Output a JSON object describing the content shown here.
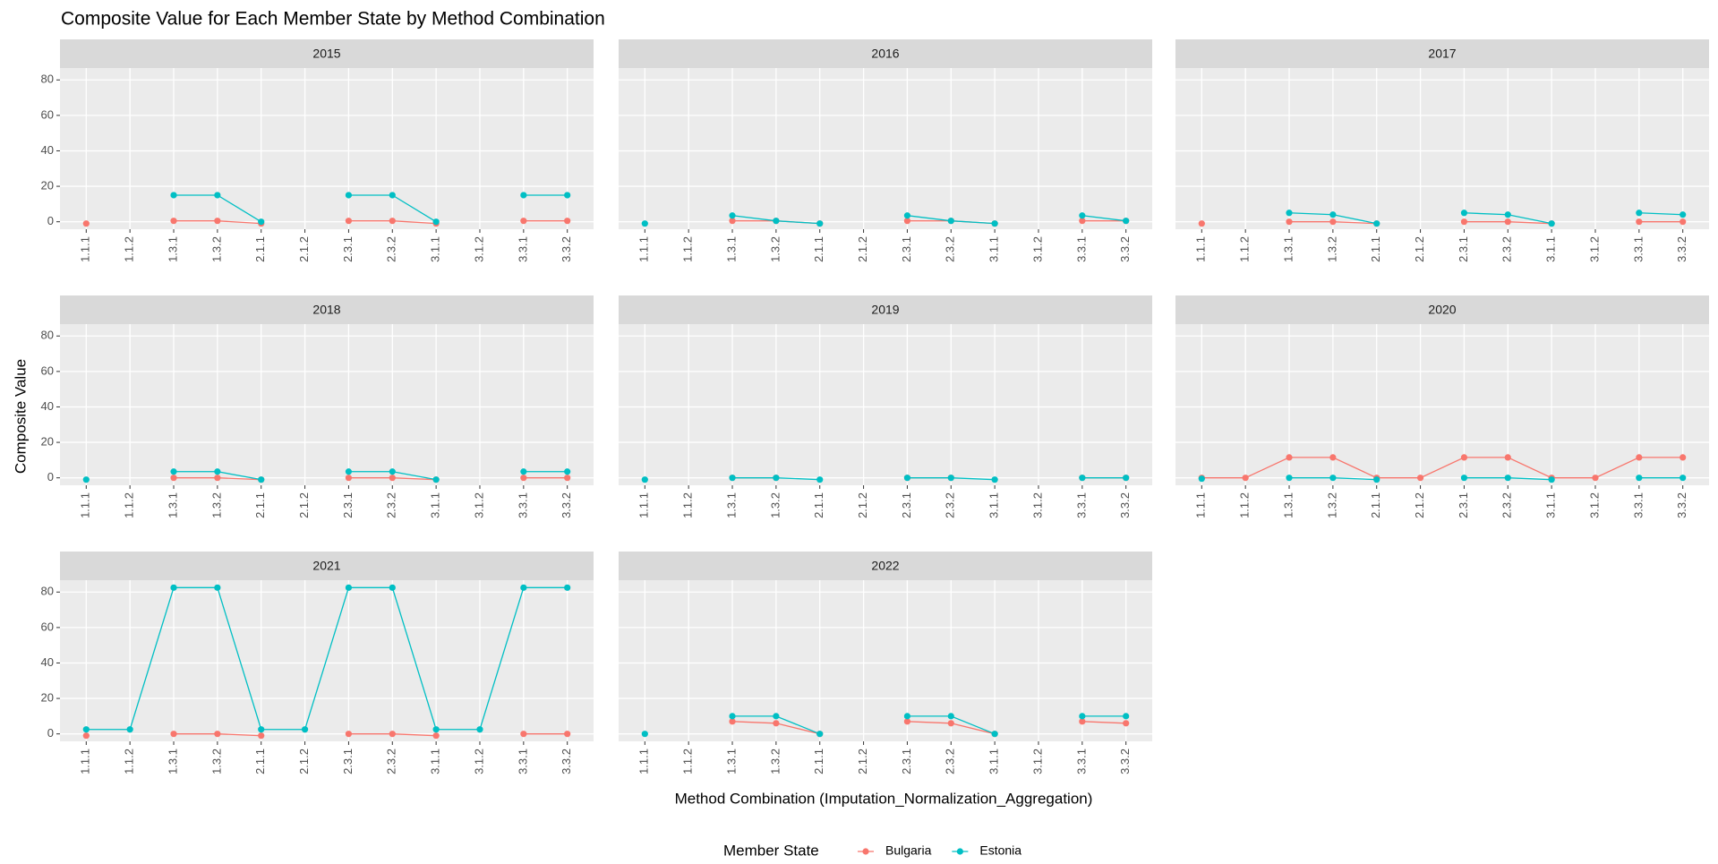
{
  "chart_data": {
    "type": "line",
    "title": "Composite Value for Each Member State by Method Combination",
    "x_label": "Method Combination (Imputation_Normalization_Aggregation)",
    "y_label": "Composite Value",
    "legend_title": "Member State",
    "categories": [
      "1.1.1",
      "1.1.2",
      "1.3.1",
      "1.3.2",
      "2.1.1",
      "2.1.2",
      "2.3.1",
      "2.3.2",
      "3.1.1",
      "3.1.2",
      "3.3.1",
      "3.3.2"
    ],
    "ylim": [
      -4.2,
      86.7
    ],
    "yticks": [
      0,
      20,
      40,
      60,
      80
    ],
    "grid": true,
    "series": [
      {
        "name": "Bulgaria",
        "color": "#F8766D"
      },
      {
        "name": "Estonia",
        "color": "#00BFC4"
      }
    ],
    "facets": [
      {
        "title": "2015",
        "values": [
          [
            -1,
            null,
            0.5,
            0.5,
            -1,
            null,
            0.5,
            0.5,
            -1,
            null,
            0.5,
            0.5
          ],
          [
            null,
            null,
            15,
            15,
            0,
            null,
            15,
            15,
            0,
            null,
            15,
            15
          ]
        ]
      },
      {
        "title": "2016",
        "values": [
          [
            null,
            null,
            0.5,
            0.5,
            -1,
            null,
            0.5,
            0.5,
            -1,
            null,
            0.5,
            0.5
          ],
          [
            -1,
            null,
            3.5,
            0.5,
            -1,
            null,
            3.5,
            0.5,
            -1,
            null,
            3.5,
            0.5
          ]
        ]
      },
      {
        "title": "2017",
        "values": [
          [
            -1,
            null,
            0,
            0,
            -1,
            null,
            0,
            0,
            -1,
            null,
            0,
            0
          ],
          [
            null,
            null,
            5,
            4,
            -1,
            null,
            5,
            4,
            -1,
            null,
            5,
            4
          ]
        ]
      },
      {
        "title": "2018",
        "values": [
          [
            null,
            null,
            0,
            0,
            -1,
            null,
            0,
            0,
            -1,
            null,
            0,
            0
          ],
          [
            -1,
            null,
            3.5,
            3.5,
            -1,
            null,
            3.5,
            3.5,
            -1,
            null,
            3.5,
            3.5
          ]
        ]
      },
      {
        "title": "2019",
        "values": [
          [
            null,
            null,
            0,
            0,
            null,
            null,
            0,
            0,
            null,
            null,
            0,
            0
          ],
          [
            -1,
            null,
            0,
            0,
            -1,
            null,
            0,
            0,
            -1,
            null,
            0,
            0
          ]
        ]
      },
      {
        "title": "2020",
        "values": [
          [
            0,
            0,
            11.5,
            11.5,
            0,
            0,
            11.5,
            11.5,
            0,
            0,
            11.5,
            11.5
          ],
          [
            -0.5,
            null,
            0,
            0,
            -1,
            null,
            0,
            0,
            -1,
            null,
            0,
            0
          ]
        ]
      },
      {
        "title": "2021",
        "values": [
          [
            -1,
            null,
            0,
            0,
            -1,
            null,
            0,
            0,
            -1,
            null,
            0,
            0
          ],
          [
            2.5,
            2.5,
            82.5,
            82.5,
            2.5,
            2.5,
            82.5,
            82.5,
            2.5,
            2.5,
            82.5,
            82.5
          ]
        ]
      },
      {
        "title": "2022",
        "values": [
          [
            null,
            null,
            7,
            6,
            0,
            null,
            7,
            6,
            0,
            null,
            7,
            6
          ],
          [
            0,
            null,
            10,
            10,
            0,
            null,
            10,
            10,
            0,
            null,
            10,
            10
          ]
        ]
      }
    ]
  }
}
